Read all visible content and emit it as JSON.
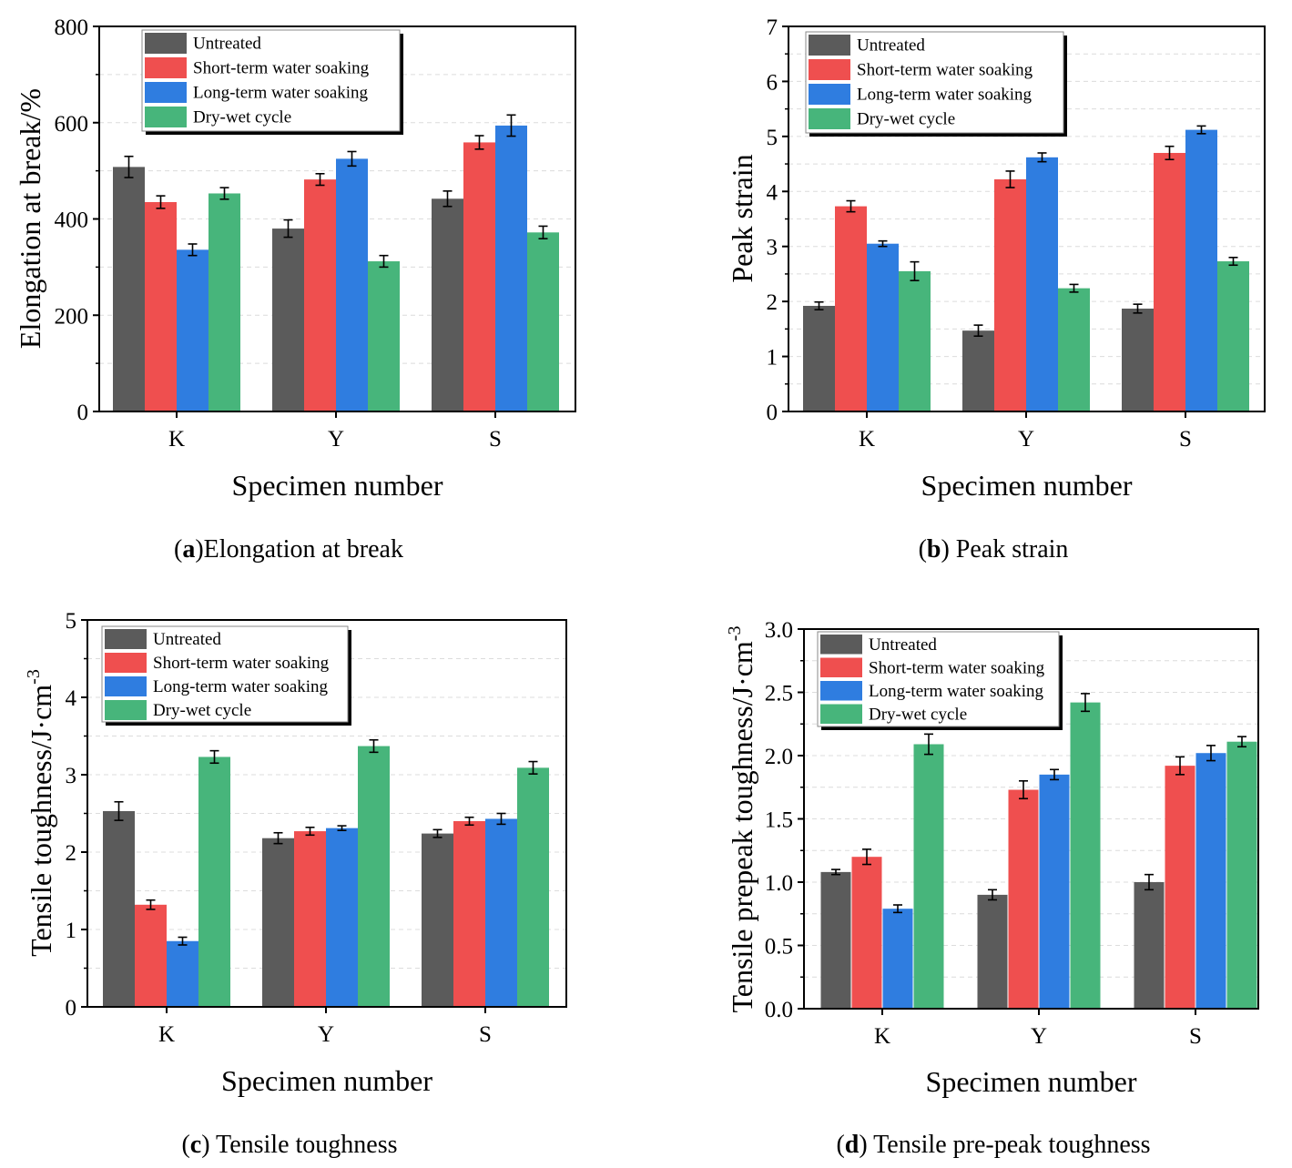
{
  "series_colors": [
    "#5b5b5b",
    "#ef4f4f",
    "#2f7de0",
    "#47b57b"
  ],
  "chart_data": [
    {
      "type": "bar",
      "caption_letter": "a",
      "caption_text": ")Elongation at break",
      "xlabel": "Specimen number",
      "ylabel": "Elongation at break/%",
      "categories": [
        "K",
        "Y",
        "S"
      ],
      "ylim": [
        0,
        800
      ],
      "yticks": [
        "0",
        "200",
        "400",
        "600",
        "800"
      ],
      "legend": "top-left",
      "series": [
        {
          "name": "Untreated",
          "values": [
            508,
            380,
            442
          ],
          "errors": [
            22,
            18,
            16
          ]
        },
        {
          "name": "Short-term water soaking",
          "values": [
            435,
            482,
            559
          ],
          "errors": [
            13,
            12,
            14
          ]
        },
        {
          "name": "Long-term water soaking",
          "values": [
            336,
            525,
            594
          ],
          "errors": [
            12,
            15,
            22
          ]
        },
        {
          "name": "Dry-wet cycle",
          "values": [
            453,
            312,
            372
          ],
          "errors": [
            12,
            12,
            13
          ]
        }
      ]
    },
    {
      "type": "bar",
      "caption_letter": "b",
      "caption_text": ") Peak strain",
      "xlabel": "Specimen number",
      "ylabel": "Peak strain",
      "categories": [
        "K",
        "Y",
        "S"
      ],
      "ylim": [
        0,
        7
      ],
      "yticks": [
        "0",
        "1",
        "2",
        "3",
        "4",
        "5",
        "6",
        "7"
      ],
      "legend": "top-left",
      "series": [
        {
          "name": "Untreated",
          "values": [
            1.92,
            1.47,
            1.87
          ],
          "errors": [
            0.07,
            0.1,
            0.08
          ]
        },
        {
          "name": "Short-term water soaking",
          "values": [
            3.73,
            4.22,
            4.7
          ],
          "errors": [
            0.1,
            0.15,
            0.12
          ]
        },
        {
          "name": "Long-term water soaking",
          "values": [
            3.05,
            4.62,
            5.12
          ],
          "errors": [
            0.05,
            0.08,
            0.07
          ]
        },
        {
          "name": "Dry-wet cycle",
          "values": [
            2.55,
            2.24,
            2.73
          ],
          "errors": [
            0.17,
            0.07,
            0.07
          ]
        }
      ]
    },
    {
      "type": "bar",
      "caption_letter": "c",
      "caption_text": ") Tensile toughness",
      "xlabel": "Specimen number",
      "ylabel": "Tensile toughness/J·cm",
      "ylabel_sup": "-3",
      "categories": [
        "K",
        "Y",
        "S"
      ],
      "ylim": [
        0,
        5
      ],
      "yticks": [
        "0",
        "1",
        "2",
        "3",
        "4",
        "5"
      ],
      "legend": "top-left",
      "series": [
        {
          "name": "Untreated",
          "values": [
            2.53,
            2.18,
            2.24
          ],
          "errors": [
            0.12,
            0.07,
            0.05
          ]
        },
        {
          "name": "Short-term water soaking",
          "values": [
            1.32,
            2.27,
            2.4
          ],
          "errors": [
            0.06,
            0.05,
            0.05
          ]
        },
        {
          "name": "Long-term water soaking",
          "values": [
            0.85,
            2.31,
            2.43
          ],
          "errors": [
            0.05,
            0.03,
            0.07
          ]
        },
        {
          "name": "Dry-wet cycle",
          "values": [
            3.23,
            3.37,
            3.09
          ],
          "errors": [
            0.08,
            0.08,
            0.08
          ]
        }
      ]
    },
    {
      "type": "bar",
      "caption_letter": "d",
      "caption_text": ") Tensile pre-peak toughness",
      "xlabel": "Specimen number",
      "ylabel": "Tensile prepeak toughness/J·cm",
      "ylabel_sup": "-3",
      "categories": [
        "K",
        "Y",
        "S"
      ],
      "ylim": [
        0,
        3.0
      ],
      "yticks": [
        "0.0",
        "0.5",
        "1.0",
        "1.5",
        "2.0",
        "2.5",
        "3.0"
      ],
      "legend": "top-left",
      "series": [
        {
          "name": "Untreated",
          "values": [
            1.08,
            0.9,
            1.0
          ],
          "errors": [
            0.02,
            0.04,
            0.06
          ]
        },
        {
          "name": "Short-term water soaking",
          "values": [
            1.2,
            1.73,
            1.92
          ],
          "errors": [
            0.06,
            0.07,
            0.07
          ]
        },
        {
          "name": "Long-term water soaking",
          "values": [
            0.79,
            1.85,
            2.02
          ],
          "errors": [
            0.03,
            0.04,
            0.06
          ]
        },
        {
          "name": "Dry-wet cycle",
          "values": [
            2.09,
            2.42,
            2.11
          ],
          "errors": [
            0.08,
            0.07,
            0.04
          ]
        }
      ]
    }
  ]
}
